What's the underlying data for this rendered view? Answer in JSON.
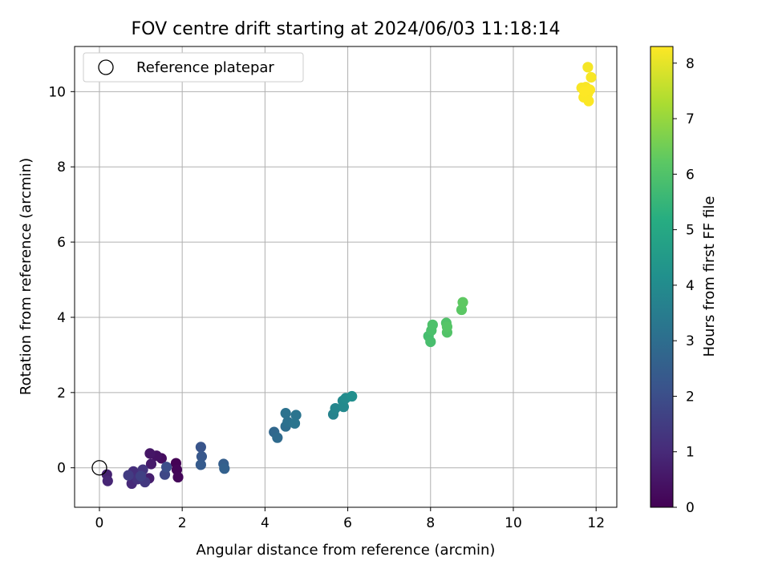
{
  "chart_data": {
    "type": "scatter",
    "title": "FOV centre drift starting at 2024/06/03 11:18:14",
    "xlabel": "Angular distance from reference (arcmin)",
    "ylabel": "Rotation from reference (arcmin)",
    "xlim": [
      -0.6,
      12.5
    ],
    "ylim": [
      -1.05,
      11.2
    ],
    "xticks": [
      "0",
      "2",
      "4",
      "6",
      "8",
      "10",
      "12"
    ],
    "yticks": [
      "0",
      "2",
      "4",
      "6",
      "8",
      "10"
    ],
    "grid": true,
    "legend": {
      "placement": "top-left",
      "entries": [
        "Reference platepar"
      ]
    },
    "reference_point": {
      "x": 0,
      "y": 0
    },
    "colorbar": {
      "label": "Hours from first FF file",
      "range": [
        0,
        8.3
      ],
      "ticks": [
        "0",
        "1",
        "2",
        "3",
        "4",
        "5",
        "6",
        "7",
        "8"
      ],
      "colormap": "viridis"
    },
    "points": [
      {
        "x": 1.85,
        "y": 0.12,
        "h": 0.02
      },
      {
        "x": 1.87,
        "y": -0.05,
        "h": 0.1
      },
      {
        "x": 1.9,
        "y": -0.25,
        "h": 0.15
      },
      {
        "x": 1.5,
        "y": 0.25,
        "h": 0.3
      },
      {
        "x": 1.38,
        "y": 0.32,
        "h": 0.4
      },
      {
        "x": 1.22,
        "y": 0.38,
        "h": 0.5
      },
      {
        "x": 1.25,
        "y": 0.1,
        "h": 0.6
      },
      {
        "x": 1.2,
        "y": -0.28,
        "h": 0.7
      },
      {
        "x": 0.18,
        "y": -0.18,
        "h": 0.8
      },
      {
        "x": 0.2,
        "y": -0.35,
        "h": 0.9
      },
      {
        "x": 0.78,
        "y": -0.42,
        "h": 1.0
      },
      {
        "x": 0.82,
        "y": -0.1,
        "h": 1.1
      },
      {
        "x": 0.92,
        "y": -0.3,
        "h": 1.2
      },
      {
        "x": 1.05,
        "y": -0.05,
        "h": 1.3
      },
      {
        "x": 1.1,
        "y": -0.38,
        "h": 1.4
      },
      {
        "x": 0.7,
        "y": -0.2,
        "h": 1.5
      },
      {
        "x": 1.0,
        "y": -0.22,
        "h": 1.6
      },
      {
        "x": 1.58,
        "y": -0.18,
        "h": 1.8
      },
      {
        "x": 1.62,
        "y": 0.02,
        "h": 2.0
      },
      {
        "x": 2.45,
        "y": 0.55,
        "h": 2.2
      },
      {
        "x": 2.47,
        "y": 0.3,
        "h": 2.3
      },
      {
        "x": 2.45,
        "y": 0.08,
        "h": 2.4
      },
      {
        "x": 3.0,
        "y": 0.1,
        "h": 2.5
      },
      {
        "x": 3.02,
        "y": -0.02,
        "h": 2.6
      },
      {
        "x": 4.22,
        "y": 0.95,
        "h": 2.8
      },
      {
        "x": 4.3,
        "y": 0.8,
        "h": 2.9
      },
      {
        "x": 4.5,
        "y": 1.1,
        "h": 3.0
      },
      {
        "x": 4.55,
        "y": 1.22,
        "h": 3.1
      },
      {
        "x": 4.5,
        "y": 1.45,
        "h": 3.15
      },
      {
        "x": 4.75,
        "y": 1.4,
        "h": 3.2
      },
      {
        "x": 4.72,
        "y": 1.18,
        "h": 3.25
      },
      {
        "x": 5.65,
        "y": 1.42,
        "h": 3.7
      },
      {
        "x": 5.7,
        "y": 1.58,
        "h": 3.8
      },
      {
        "x": 5.9,
        "y": 1.62,
        "h": 3.9
      },
      {
        "x": 5.88,
        "y": 1.78,
        "h": 3.95
      },
      {
        "x": 5.95,
        "y": 1.85,
        "h": 4.0
      },
      {
        "x": 6.1,
        "y": 1.9,
        "h": 4.1
      },
      {
        "x": 7.95,
        "y": 3.5,
        "h": 5.8
      },
      {
        "x": 8.0,
        "y": 3.35,
        "h": 5.85
      },
      {
        "x": 8.02,
        "y": 3.65,
        "h": 5.9
      },
      {
        "x": 8.05,
        "y": 3.8,
        "h": 5.95
      },
      {
        "x": 8.38,
        "y": 3.85,
        "h": 6.0
      },
      {
        "x": 8.4,
        "y": 3.6,
        "h": 6.05
      },
      {
        "x": 8.4,
        "y": 3.75,
        "h": 6.1
      },
      {
        "x": 8.75,
        "y": 4.2,
        "h": 6.2
      },
      {
        "x": 8.78,
        "y": 4.4,
        "h": 6.25
      },
      {
        "x": 11.8,
        "y": 10.65,
        "h": 8.2
      },
      {
        "x": 11.88,
        "y": 10.38,
        "h": 8.22
      },
      {
        "x": 11.65,
        "y": 10.1,
        "h": 8.24
      },
      {
        "x": 11.75,
        "y": 10.12,
        "h": 8.25
      },
      {
        "x": 11.8,
        "y": 9.95,
        "h": 8.26
      },
      {
        "x": 11.7,
        "y": 9.85,
        "h": 8.27
      },
      {
        "x": 11.82,
        "y": 9.75,
        "h": 8.28
      },
      {
        "x": 11.85,
        "y": 10.05,
        "h": 8.29
      },
      {
        "x": 11.72,
        "y": 10.0,
        "h": 8.3
      }
    ]
  }
}
